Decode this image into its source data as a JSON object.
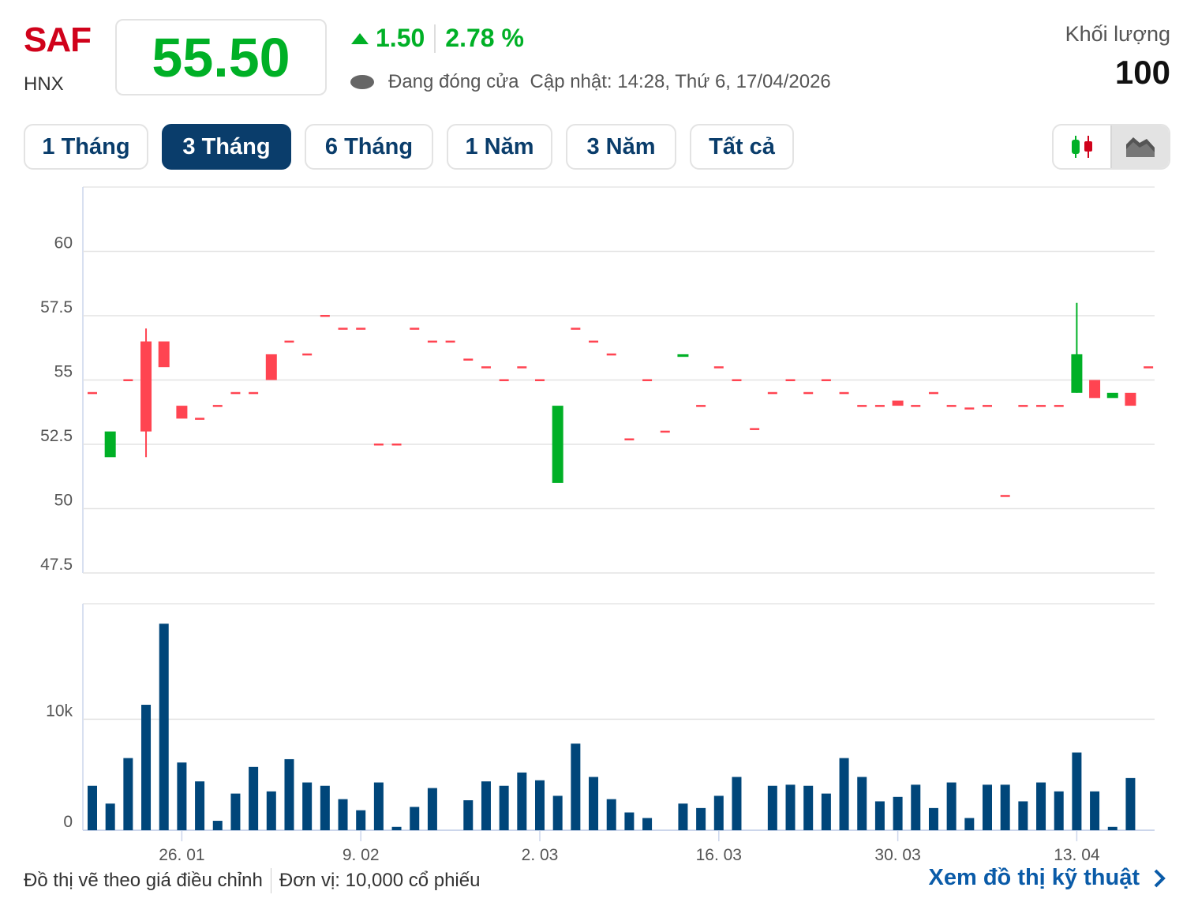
{
  "header": {
    "ticker": "SAF",
    "exchange": "HNX",
    "price": "55.50",
    "change": "1.50",
    "change_pct": "2.78 %",
    "status": "Đang đóng cửa",
    "updated": "Cập nhật: 14:28, Thứ 6, 17/04/2026",
    "volume_label": "Khối lượng",
    "volume_value": "100"
  },
  "tabs": [
    {
      "label": "1 Tháng"
    },
    {
      "label": "3 Tháng",
      "active": true
    },
    {
      "label": "6 Tháng"
    },
    {
      "label": "1 Năm"
    },
    {
      "label": "3 Năm"
    },
    {
      "label": "Tất cả"
    }
  ],
  "chart_toggle": {
    "options": [
      "candlestick-icon",
      "area-chart-icon"
    ],
    "selected": "area-chart-icon"
  },
  "colors": {
    "up": "#00b026",
    "down": "#ff4451",
    "volume": "#00467a",
    "accent": "#0a3d6b",
    "ticker": "#d0021b"
  },
  "chart_data": {
    "type": "candlestick",
    "price_axis": {
      "ticks": [
        "60",
        "57.5",
        "55",
        "52.5",
        "50",
        "47.5"
      ],
      "tick_values": [
        60,
        57.5,
        55,
        52.5,
        50,
        47.5
      ],
      "ylim": [
        47.5,
        62.5
      ]
    },
    "volume_axis": {
      "ticks": [
        "10k",
        "0"
      ],
      "tick_values": [
        10000,
        0
      ],
      "ylim": [
        0,
        20400
      ]
    },
    "x_ticks": [
      {
        "label": "26. 01",
        "index": 5
      },
      {
        "label": "9. 02",
        "index": 15
      },
      {
        "label": "2. 03",
        "index": 25
      },
      {
        "label": "16. 03",
        "index": 35
      },
      {
        "label": "30. 03",
        "index": 45
      },
      {
        "label": "13. 04",
        "index": 55
      }
    ],
    "ohlc": [
      [
        54.5,
        54.5,
        54.5,
        54.5
      ],
      [
        52,
        53,
        52,
        53
      ],
      [
        55,
        55,
        55,
        55
      ],
      [
        56.5,
        57,
        52,
        53
      ],
      [
        56.5,
        56.5,
        55.5,
        55.5
      ],
      [
        54,
        54,
        53.5,
        53.5
      ],
      [
        53.5,
        53.5,
        53.5,
        53.5
      ],
      [
        54,
        54,
        54,
        54
      ],
      [
        54.5,
        54.5,
        54.5,
        54.5
      ],
      [
        54.5,
        54.5,
        54.5,
        54.5
      ],
      [
        56,
        56,
        55,
        55
      ],
      [
        56.5,
        56.5,
        56.5,
        56.5
      ],
      [
        56,
        56,
        56,
        56
      ],
      [
        57.5,
        57.5,
        57.5,
        57.5
      ],
      [
        57,
        57,
        57,
        57
      ],
      [
        57,
        57,
        57,
        57
      ],
      [
        52.5,
        52.5,
        52.5,
        52.5
      ],
      [
        52.5,
        52.5,
        52.5,
        52.5
      ],
      [
        57,
        57,
        57,
        57
      ],
      [
        56.5,
        56.5,
        56.5,
        56.5
      ],
      [
        56.5,
        56.5,
        56.5,
        56.5
      ],
      [
        55.8,
        55.8,
        55.8,
        55.8
      ],
      [
        55.5,
        55.5,
        55.5,
        55.5
      ],
      [
        55,
        55,
        55,
        55
      ],
      [
        55.5,
        55.5,
        55.5,
        55.5
      ],
      [
        55,
        55,
        55,
        55
      ],
      [
        51,
        54,
        51,
        54
      ],
      [
        57,
        57,
        57,
        57
      ],
      [
        56.5,
        56.5,
        56.5,
        56.5
      ],
      [
        56,
        56,
        56,
        56
      ],
      [
        52.7,
        52.7,
        52.7,
        52.7
      ],
      [
        55,
        55,
        55,
        55
      ],
      [
        53,
        53,
        53,
        53
      ],
      [
        55.9,
        56,
        55.9,
        56
      ],
      [
        54,
        54,
        54,
        54
      ],
      [
        55.5,
        55.5,
        55.5,
        55.5
      ],
      [
        55,
        55,
        55,
        55
      ],
      [
        53.1,
        53.1,
        53.1,
        53.1
      ],
      [
        54.5,
        54.5,
        54.5,
        54.5
      ],
      [
        55,
        55,
        55,
        55
      ],
      [
        54.5,
        54.5,
        54.5,
        54.5
      ],
      [
        55,
        55,
        55,
        55
      ],
      [
        54.5,
        54.5,
        54.5,
        54.5
      ],
      [
        54,
        54,
        54,
        54
      ],
      [
        54,
        54,
        54,
        54
      ],
      [
        54.2,
        54.2,
        54,
        54
      ],
      [
        54,
        54,
        54,
        54
      ],
      [
        54.5,
        54.5,
        54.5,
        54.5
      ],
      [
        54,
        54,
        54,
        54
      ],
      [
        53.9,
        53.9,
        53.9,
        53.9
      ],
      [
        54,
        54,
        54,
        54
      ],
      [
        50.5,
        50.5,
        50.5,
        50.5
      ],
      [
        54,
        54,
        54,
        54
      ],
      [
        54,
        54,
        54,
        54
      ],
      [
        54,
        54,
        54,
        54
      ],
      [
        54.5,
        58,
        54.5,
        56
      ],
      [
        55,
        55,
        54.3,
        54.3
      ],
      [
        54.3,
        54.5,
        54.3,
        54.5
      ],
      [
        54.5,
        54.5,
        54,
        54
      ],
      [
        55.5,
        55.5,
        55.5,
        55.5
      ]
    ],
    "volume": [
      4000,
      2400,
      6500,
      11300,
      18600,
      6100,
      4400,
      850,
      3300,
      5700,
      3500,
      6400,
      4300,
      4000,
      2800,
      1800,
      4300,
      300,
      2100,
      3800,
      0,
      2700,
      4400,
      4000,
      5200,
      4500,
      3100,
      7800,
      4800,
      2800,
      1600,
      1100,
      0,
      2400,
      2000,
      3100,
      4800,
      0,
      4000,
      4100,
      4000,
      3300,
      6500,
      4800,
      2600,
      3000,
      4100,
      2000,
      4300,
      1100,
      4100,
      4100,
      2600,
      4300,
      3500,
      7000,
      3500,
      300,
      4700,
      0
    ]
  },
  "footer": {
    "note": "Đồ thị vẽ theo giá điều chỉnh",
    "unit": "Đơn vị: 10,000 cổ phiếu",
    "link": "Xem đồ thị kỹ thuật"
  }
}
